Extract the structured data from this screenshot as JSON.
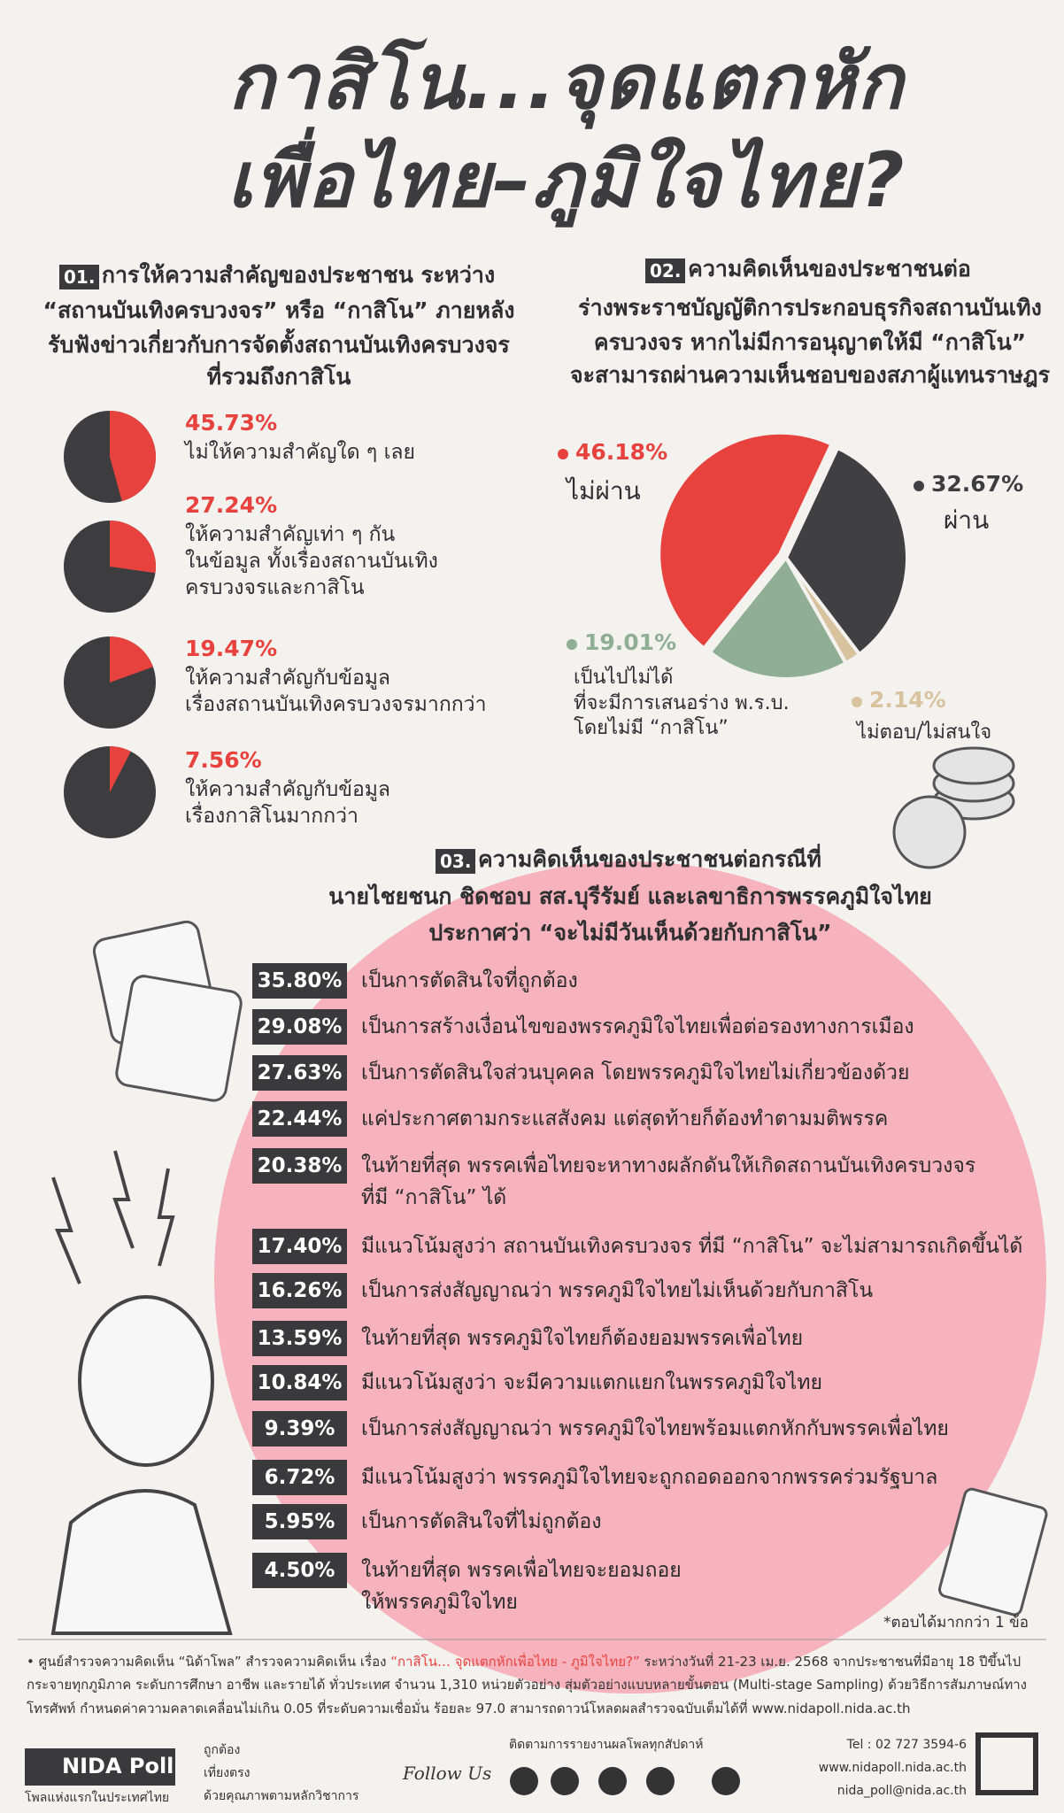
{
  "header": {
    "title_lines": [
      "กาสิโน...จุดแตกหัก",
      "เพื่อไทย–ภูมิใจไทย?"
    ]
  },
  "chart_data": [
    {
      "type": "pie-list",
      "number": "01.",
      "title_lines": [
        "การให้ความสำคัญของประชาชน ระหว่าง",
        "“สถานบันเทิงครบวงจร” หรือ “กาสิโน” ภายหลัง",
        "รับฟังข่าวเกี่ยวกับการจัดตั้งสถานบันเทิงครบวงจร",
        "ที่รวมถึงกาสิโน"
      ],
      "categories": [
        "ไม่ให้ความสำคัญใด ๆ เลย",
        "ให้ความสำคัญเท่า ๆ กัน\nในข้อมูล ทั้งเรื่องสถานบันเทิง\nครบวงจรและกาสิโน",
        "ให้ความสำคัญกับข้อมูล\nเรื่องสถานบันเทิงครบวงจรมากกว่า",
        "ให้ความสำคัญกับข้อมูล\nเรื่องกาสิโนมากกว่า"
      ],
      "values": [
        45.73,
        27.24,
        19.47,
        7.56
      ],
      "value_labels": [
        "45.73%",
        "27.24%",
        "19.47%",
        "7.56%"
      ],
      "color": "#e8423f"
    },
    {
      "type": "pie",
      "number": "02.",
      "title_lines": [
        "ความคิดเห็นของประชาชนต่อ",
        "ร่างพระราชบัญญัติการประกอบธุรกิจสถานบันเทิง",
        "ครบวงจร หากไม่มีการอนุญาตให้มี “กาสิโน”",
        "จะสามารถผ่านความเห็นชอบของสภาผู้แทนราษฎร"
      ],
      "categories": [
        "ไม่ผ่าน",
        "ผ่าน",
        "ไม่ตอบ/ไม่สนใจ",
        "เป็นไปไม่ได้\nที่จะมีการเสนอร่าง พ.ร.บ.\nโดยไม่มี “กาสิโน”"
      ],
      "values": [
        46.18,
        32.67,
        2.14,
        19.01
      ],
      "value_labels": [
        "46.18%",
        "32.67%",
        "2.14%",
        "19.01%"
      ],
      "colors": [
        "#e8423f",
        "#403f41",
        "#d9c39e",
        "#8fae93"
      ]
    },
    {
      "type": "ranked-list",
      "number": "03.",
      "title_lines": [
        "ความคิดเห็นของประชาชนต่อกรณีที่",
        "นายไชยชนก ชิดชอบ สส.บุรีรัมย์ และเลขาธิการพรรคภูมิใจไทย",
        "ประกาศว่า “จะไม่มีวันเห็นด้วยกับกาสิโน”"
      ],
      "categories": [
        "เป็นการตัดสินใจที่ถูกต้อง",
        "เป็นการสร้างเงื่อนไขของพรรคภูมิใจไทยเพื่อต่อรองทางการเมือง",
        "เป็นการตัดสินใจส่วนบุคคล โดยพรรคภูมิใจไทยไม่เกี่ยวข้องด้วย",
        "แค่ประกาศตามกระแสสังคม แต่สุดท้ายก็ต้องทำตามมติพรรค",
        "ในท้ายที่สุด พรรคเพื่อไทยจะหาทางผลักดันให้เกิดสถานบันเทิงครบวงจร\nที่มี “กาสิโน” ได้",
        "มีแนวโน้มสูงว่า สถานบันเทิงครบวงจร ที่มี “กาสิโน” จะไม่สามารถเกิดขึ้นได้",
        "เป็นการส่งสัญญาณว่า พรรคภูมิใจไทยไม่เห็นด้วยกับกาสิโน",
        "ในท้ายที่สุด พรรคภูมิใจไทยก็ต้องยอมพรรคเพื่อไทย",
        "มีแนวโน้มสูงว่า จะมีความแตกแยกในพรรคภูมิใจไทย",
        "เป็นการส่งสัญญาณว่า พรรคภูมิใจไทยพร้อมแตกหักกับพรรคเพื่อไทย",
        "มีแนวโน้มสูงว่า พรรคภูมิใจไทยจะถูกถอดออกจากพรรคร่วมรัฐบาล",
        "เป็นการตัดสินใจที่ไม่ถูกต้อง",
        "ในท้ายที่สุด พรรคเพื่อไทยจะยอมถอย\nให้พรรคภูมิใจไทย"
      ],
      "values": [
        35.8,
        29.08,
        27.63,
        22.44,
        20.38,
        17.4,
        16.26,
        13.59,
        10.84,
        9.39,
        6.72,
        5.95,
        4.5
      ],
      "value_labels": [
        "35.80%",
        "29.08%",
        "27.63%",
        "22.44%",
        "20.38%",
        "17.40%",
        "16.26%",
        "13.59%",
        "10.84%",
        "9.39%",
        "6.72%",
        "5.95%",
        "4.50%"
      ],
      "note": "*ตอบได้มากกว่า 1 ข้อ"
    }
  ],
  "footer": {
    "note_start": "• ศูนย์สำรวจความคิดเห็น “นิด้าโพล” สำรวจความคิดเห็น เรื่อง",
    "note_title": "“กาสิโน… จุดแตกหักเพื่อไทย - ภูมิใจไทย?”",
    "note_rest": "ระหว่างวันที่ 21-23 เม.ย. 2568 จากประชาชนที่มีอายุ 18 ปีขึ้นไป กระจายทุกภูมิภาค ระดับการศึกษา อาชีพ และรายได้ ทั่วประเทศ จำนวน 1,310 หน่วยตัวอย่าง สุ่มตัวอย่างแบบหลายขั้นตอน (Multi-stage Sampling) ด้วยวิธีการสัมภาษณ์ทางโทรศัพท์ กำหนดค่าความคลาดเคลื่อนไม่เกิน 0.05 ที่ระดับความเชื่อมั่น ร้อยละ 97.0 สามารถดาวน์โหลดผลสำรวจฉบับเต็มได้ที่ www.nidapoll.nida.ac.th",
    "brand": "NIDA Poll",
    "brand_tagline": "โพลแห่งแรกในประเทศไทย",
    "values": [
      "ถูกต้อง",
      "เที่ยงตรง",
      "ด้วยคุณภาพตามหลักวิชาการ"
    ],
    "follow": "Follow Us",
    "follow_note": "ติดตามการรายงานผลโพลทุกสัปดาห์",
    "contacts": [
      "Tel : 02 727 3594-6",
      "www.nidapoll.nida.ac.th",
      "nida_poll@nida.ac.th"
    ]
  }
}
